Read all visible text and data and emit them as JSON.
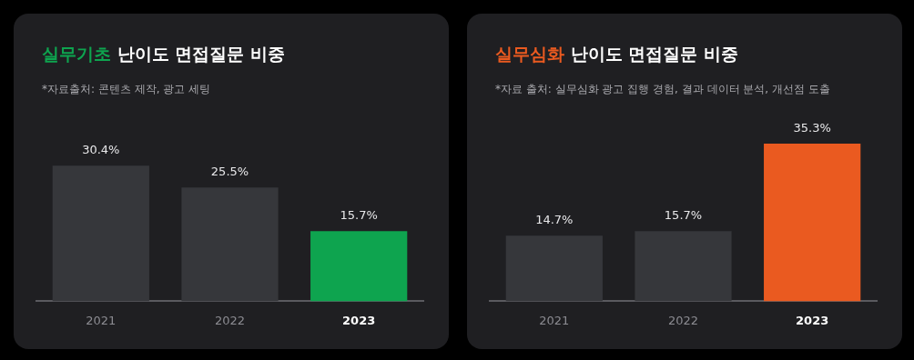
{
  "chart_data": [
    {
      "type": "bar",
      "title": "실무기초 난이도 면접질문 비중",
      "annotations": [
        "*자료출처: 콘텐츠 제작, 광고 세팅"
      ],
      "categories": [
        "2021",
        "2022",
        "2023"
      ],
      "values": [
        30.4,
        25.5,
        15.7
      ],
      "value_labels": [
        "30.4%",
        "25.5%",
        "15.7%"
      ],
      "colors": [
        "#36373b",
        "#36373b",
        "#0ea44f"
      ],
      "tick_labels": "x"
    },
    {
      "type": "bar",
      "title": "실무심화 난이도 면접질문 비중",
      "annotations": [
        "*자료 출처: 실무심화 광고 집행 경험, 결과 데이터 분석, 개선점 도출"
      ],
      "categories": [
        "2021",
        "2022",
        "2023"
      ],
      "values": [
        14.7,
        15.7,
        35.3
      ],
      "value_labels": [
        "14.7%",
        "15.7%",
        "35.3%"
      ],
      "colors": [
        "#36373b",
        "#36373b",
        "#ea5a20"
      ],
      "tick_labels": "x"
    }
  ]
}
